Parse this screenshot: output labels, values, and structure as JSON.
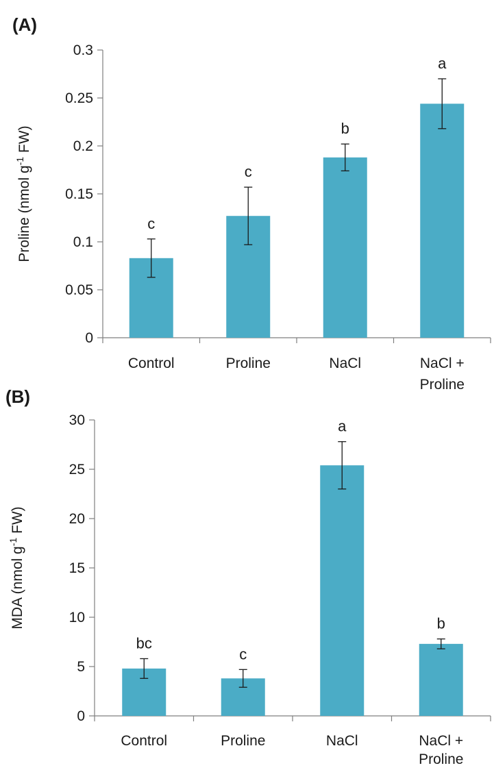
{
  "chart_data": [
    {
      "type": "bar",
      "panel_label": "(A)",
      "ylabel": "Proline (nmol g-1 FW)",
      "ylabel_parts": {
        "main": "Proline (nmol g",
        "sup": "-1",
        "tail": " FW)"
      },
      "ylim": [
        0,
        0.3
      ],
      "yticks": [
        "0",
        "0.05",
        "0.1",
        "0.15",
        "0.2",
        "0.25",
        "0.3"
      ],
      "ytick_values": [
        0,
        0.05,
        0.1,
        0.15,
        0.2,
        0.25,
        0.3
      ],
      "categories": [
        [
          "Control"
        ],
        [
          "Proline"
        ],
        [
          "NaCl"
        ],
        [
          "NaCl +",
          "Proline"
        ]
      ],
      "values": [
        0.083,
        0.127,
        0.188,
        0.244
      ],
      "errors": [
        0.02,
        0.03,
        0.014,
        0.026
      ],
      "significance": [
        "c",
        "c",
        "b",
        "a"
      ],
      "bar_color": "#4BACC6",
      "grid": false,
      "legend": "none"
    },
    {
      "type": "bar",
      "panel_label": "(B)",
      "ylabel": "MDA (nmol g-1 FW)",
      "ylabel_parts": {
        "main": "MDA (nmol g",
        "sup": "-1",
        "tail": " FW)"
      },
      "ylim": [
        0,
        30
      ],
      "yticks": [
        "0",
        "5",
        "10",
        "15",
        "20",
        "25",
        "30"
      ],
      "ytick_values": [
        0,
        5,
        10,
        15,
        20,
        25,
        30
      ],
      "categories": [
        [
          "Control"
        ],
        [
          "Proline"
        ],
        [
          "NaCl"
        ],
        [
          "NaCl +",
          "Proline"
        ]
      ],
      "values": [
        4.8,
        3.8,
        25.4,
        7.3
      ],
      "errors": [
        1.0,
        0.9,
        2.4,
        0.5
      ],
      "significance": [
        "bc",
        "c",
        "a",
        "b"
      ],
      "bar_color": "#4BACC6",
      "grid": false,
      "legend": "none"
    }
  ]
}
